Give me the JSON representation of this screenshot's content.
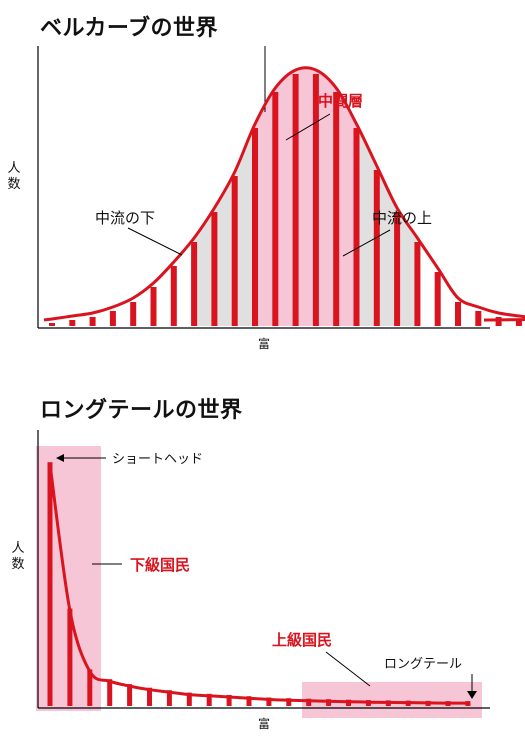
{
  "chart_data": [
    {
      "type": "bar",
      "title": "ベルカーブの世界",
      "xlabel": "富",
      "ylabel": "人数",
      "grid": false,
      "values": [
        0.5,
        1.0,
        1.5,
        2.5,
        4.0,
        6.5,
        10.0,
        14.0,
        19.0,
        25.0,
        33.0,
        39.0,
        42.0,
        42.0,
        39.0,
        33.0,
        26.0,
        19.0,
        14.0,
        9.0,
        4.0,
        2.5,
        1.5,
        1.0,
        0.5
      ],
      "ylim": [
        0,
        45
      ],
      "highlights": [
        {
          "name": "中流の下",
          "range": [
            7,
            11
          ],
          "color": "#e0e0e0"
        },
        {
          "name": "中間層",
          "range": [
            11,
            14
          ],
          "color": "#f7c6d6"
        },
        {
          "name": "中流の上",
          "range": [
            14,
            18
          ],
          "color": "#e0e0e0"
        }
      ],
      "annotations": [
        {
          "text": "中間層",
          "color": "#d9141e"
        },
        {
          "text": "中流の下",
          "color": "#111111"
        },
        {
          "text": "中流の上",
          "color": "#111111"
        }
      ],
      "colors": {
        "bar": "#d9141e",
        "curve": "#d9141e",
        "axis": "#000000"
      }
    },
    {
      "type": "bar",
      "title": "ロングテールの世界",
      "xlabel": "富",
      "ylabel": "人数",
      "grid": false,
      "values": [
        100,
        40,
        15,
        11,
        9,
        7.5,
        6.5,
        5.5,
        5.0,
        4.5,
        4.0,
        3.5,
        3.2,
        3.0,
        2.8,
        2.6,
        2.4,
        2.3,
        2.2,
        2.1,
        2.0,
        2.0
      ],
      "ylim": [
        0,
        105
      ],
      "highlights": [
        {
          "name": "下級国民",
          "range": [
            0,
            2
          ],
          "color": "#f7c6d6"
        },
        {
          "name": "上級国民",
          "range": [
            13,
            21
          ],
          "color": "#f7c6d6"
        }
      ],
      "annotations": [
        {
          "text": "ショートヘッド",
          "color": "#111111"
        },
        {
          "text": "下級国民",
          "color": "#d9141e"
        },
        {
          "text": "上級国民",
          "color": "#d9141e"
        },
        {
          "text": "ロングテール",
          "color": "#111111"
        }
      ],
      "colors": {
        "bar": "#d9141e",
        "curve": "#d9141e",
        "axis": "#000000"
      }
    }
  ]
}
